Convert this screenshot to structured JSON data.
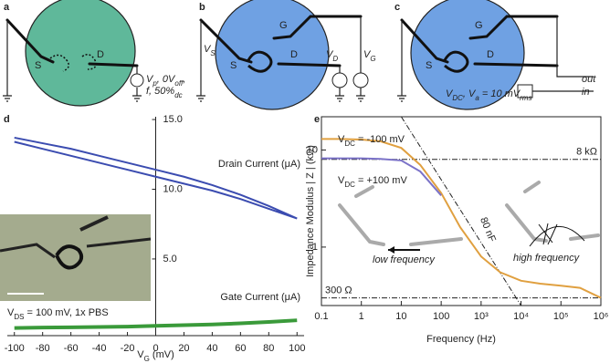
{
  "panel_labels": {
    "a": "a",
    "b": "b",
    "c": "c",
    "d": "d",
    "e": "e"
  },
  "diagrams": {
    "a": {
      "s": "S",
      "d": "D",
      "line1": [
        "V",
        "p",
        ", 0V",
        "off",
        ","
      ],
      "line2": [
        "f, 50%",
        "dc"
      ]
    },
    "b": {
      "g": "G",
      "vs": [
        "V",
        "S"
      ],
      "s": "S",
      "d": "D",
      "vd": [
        "V",
        "D"
      ],
      "vg": [
        "V",
        "G"
      ]
    },
    "c": {
      "g": "G",
      "s": "S",
      "d": "D",
      "out": "out",
      "in": "in",
      "bias": [
        "V",
        "DC",
        ", V",
        "a",
        " = 10 mV",
        "rms"
      ]
    }
  },
  "chart_data": [
    {
      "type": "line",
      "xlabel": [
        "V",
        "G",
        " (mV)"
      ],
      "annotation": [
        "V",
        "DS",
        " = 100 mV, 1x PBS"
      ],
      "xlim": [
        -105,
        105
      ],
      "xticks": [
        -100,
        -80,
        -60,
        -40,
        -20,
        0,
        20,
        40,
        60,
        80,
        100
      ],
      "ylim": [
        -0.5,
        15.2
      ],
      "yticks": [
        {
          "value": 5,
          "label": "5.0"
        },
        {
          "value": 10,
          "label": "10.0"
        },
        {
          "value": 15,
          "label": "15.0"
        }
      ],
      "series": [
        {
          "name": "Drain Current (μA)",
          "color": "#3b4cb0",
          "x": [
            -100,
            -80,
            -60,
            -40,
            -20,
            0,
            20,
            40,
            60,
            80,
            100,
            80,
            60,
            40,
            20,
            0,
            -20,
            -40,
            -60,
            -80,
            -100
          ],
          "values": [
            13.7,
            13.3,
            12.9,
            12.4,
            11.9,
            11.4,
            10.9,
            10.3,
            9.6,
            8.8,
            7.9,
            8.6,
            9.3,
            9.9,
            10.4,
            10.9,
            11.4,
            11.9,
            12.4,
            12.9,
            13.4
          ]
        },
        {
          "name": "Gate Current (μA)",
          "color": "#3a9a3a",
          "x": [
            -100,
            -80,
            -60,
            -40,
            -20,
            0,
            20,
            40,
            60,
            80,
            100
          ],
          "values": [
            0.05,
            0.08,
            0.1,
            0.12,
            0.15,
            0.2,
            0.25,
            0.3,
            0.38,
            0.48,
            0.6
          ]
        }
      ]
    },
    {
      "type": "line",
      "log_x": true,
      "log_y": true,
      "xlabel": "Frequency (Hz)",
      "ylabel": "Impedance Modulus | Z | (kΩ)",
      "x": [
        0.1,
        0.3,
        1,
        3,
        10,
        30,
        100,
        300,
        1000,
        3000,
        10000,
        30000,
        100000,
        300000,
        1000000
      ],
      "xlim": [
        0.1,
        1000000
      ],
      "xticks": [
        0.1,
        1,
        10,
        100,
        {
          "value": 1000,
          "label": "10³"
        },
        {
          "value": 10000,
          "label": "10⁴"
        },
        {
          "value": 100000,
          "label": "10⁵"
        },
        {
          "value": 1000000,
          "label": "10⁶"
        }
      ],
      "ylim": [
        0.25,
        22
      ],
      "yticks": [
        1,
        10
      ],
      "series": [
        {
          "name": [
            "V",
            "DC",
            " = -100 mV"
          ],
          "color": "#e0a040",
          "values": [
            13,
            13,
            12.8,
            12.3,
            10.5,
            7,
            3.6,
            1.6,
            0.8,
            0.55,
            0.45,
            0.42,
            0.4,
            0.38,
            0.3
          ]
        },
        {
          "name": [
            "V",
            "DC",
            " = +100 mV"
          ],
          "color": "#7b72c8",
          "values": [
            8.2,
            8.2,
            8.2,
            8.1,
            7.8,
            6,
            3.4,
            null,
            null,
            null,
            null,
            null,
            null,
            null,
            null
          ]
        }
      ],
      "reference_lines": [
        {
          "label": "8 kΩ",
          "y": 8
        },
        {
          "label": "300 Ω",
          "y": 0.3
        }
      ],
      "capacitor_line": {
        "label": "80 nF",
        "x": [
          10,
          10000
        ],
        "y": [
          22,
          0.25
        ]
      },
      "annotations": [
        "low frequency",
        "high frequency"
      ]
    }
  ]
}
